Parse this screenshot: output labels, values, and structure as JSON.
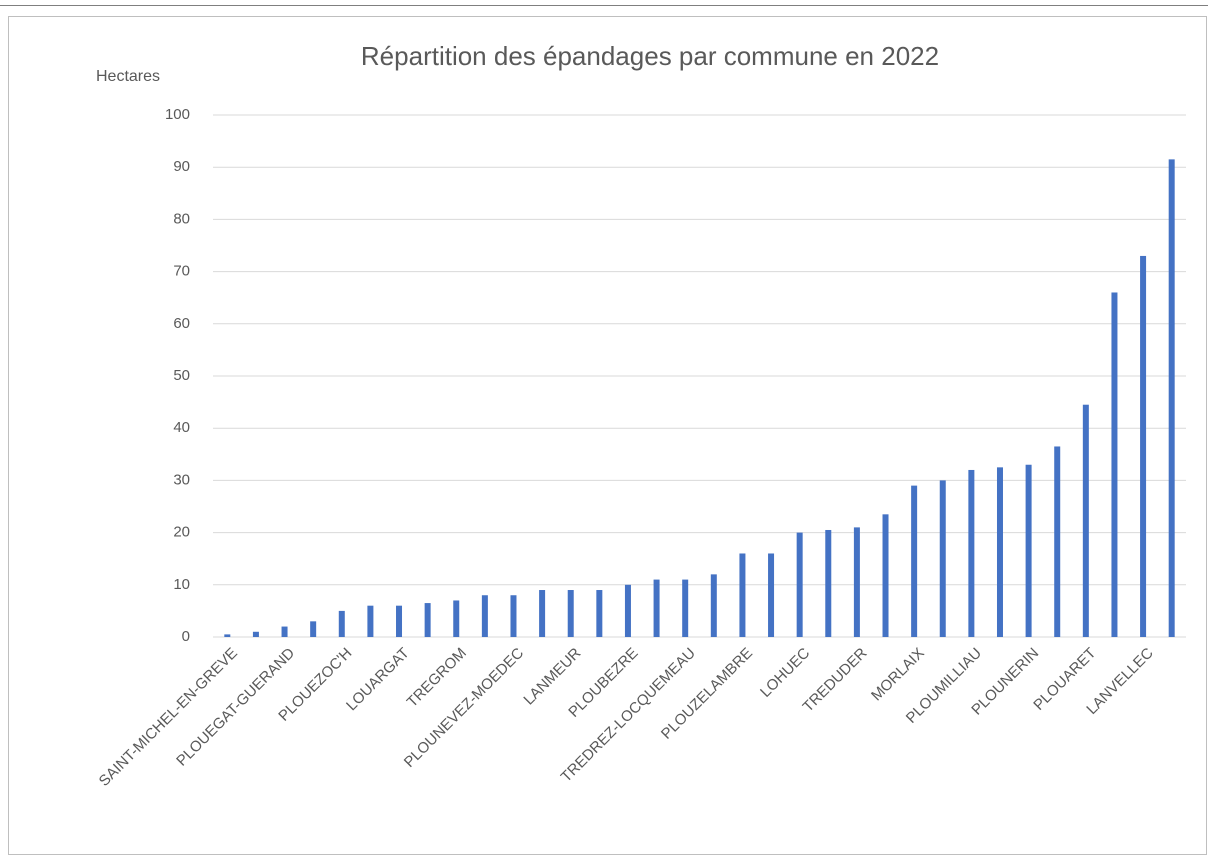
{
  "chart_data": {
    "type": "bar",
    "title": "Répartition des épandages par commune en 2022",
    "y_label": "Hectares",
    "categories": [
      "SAINT-MICHEL-EN-GREVE",
      null,
      "PLOUEGAT-GUERAND",
      null,
      "PLOUEZOC'H",
      null,
      "LOUARGAT",
      null,
      "TREGROM",
      null,
      "PLOUNEVEZ-MOEDEC",
      null,
      "LANMEUR",
      null,
      "PLOUBEZRE",
      null,
      "TREDREZ-LOCQUEMEAU",
      null,
      "PLOUZELAMBRE",
      null,
      "LOHUEC",
      null,
      "TREDUDER",
      null,
      "MORLAIX",
      null,
      "PLOUMILLIAU",
      null,
      "PLOUNERIN",
      null,
      "PLOUARET",
      null,
      "LANVELLEC",
      null
    ],
    "values": [
      0.5,
      1,
      2,
      3,
      5,
      6,
      6,
      6.5,
      7,
      8,
      8,
      9,
      9,
      9,
      10,
      11,
      11,
      12,
      16,
      16,
      20,
      20.5,
      21,
      23.5,
      29,
      30,
      32,
      32.5,
      33,
      36.5,
      44.5,
      66,
      73,
      91.5
    ],
    "color": "#4472c4",
    "ylim": [
      0,
      100
    ],
    "yticks": [
      0,
      10,
      20,
      30,
      40,
      50,
      60,
      70,
      80,
      90,
      100
    ],
    "grid": true
  }
}
